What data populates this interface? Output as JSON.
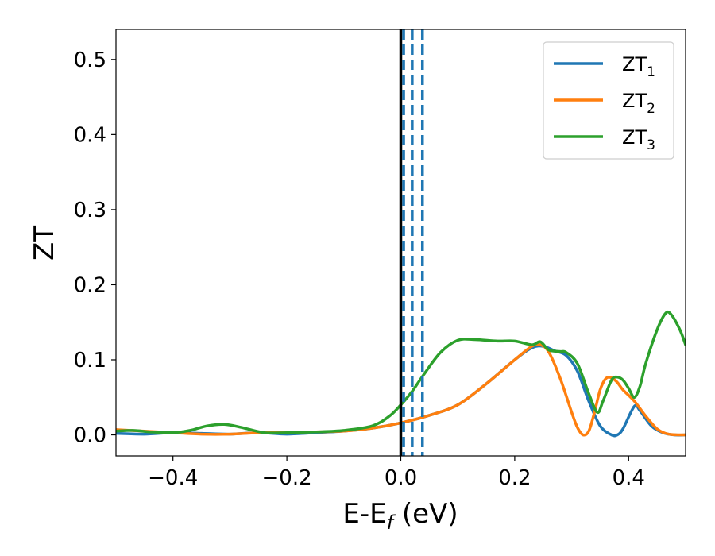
{
  "chart_data": {
    "type": "line",
    "xlabel": "E-E",
    "xlabel_sub": "f",
    "xlabel_unit": " (eV)",
    "ylabel": "ZT",
    "xlim": [
      -0.5,
      0.5
    ],
    "ylim": [
      -0.028,
      0.54
    ],
    "xticks": [
      -0.4,
      -0.2,
      0.0,
      0.2,
      0.4
    ],
    "xtick_labels": [
      "−0.4",
      "−0.2",
      "0.0",
      "0.2",
      "0.4"
    ],
    "yticks": [
      0.0,
      0.1,
      0.2,
      0.3,
      0.4,
      0.5
    ],
    "ytick_labels": [
      "0.0",
      "0.1",
      "0.2",
      "0.3",
      "0.4",
      "0.5"
    ],
    "grid": false,
    "legend_position": "top-right",
    "vertical_lines": [
      {
        "x": 0.0,
        "style": "solid",
        "color": "#000000"
      },
      {
        "x": 0.005,
        "style": "dashed",
        "color": "#1f77b4"
      },
      {
        "x": 0.02,
        "style": "dashed",
        "color": "#1f77b4"
      },
      {
        "x": 0.038,
        "style": "dashed",
        "color": "#1f77b4"
      }
    ],
    "series": [
      {
        "name": "ZT",
        "sub": "1",
        "color": "#1f77b4",
        "points": [
          [
            -0.5,
            0.002
          ],
          [
            -0.45,
            0.001
          ],
          [
            -0.4,
            0.003
          ],
          [
            -0.35,
            0.002
          ],
          [
            -0.3,
            0.001
          ],
          [
            -0.25,
            0.003
          ],
          [
            -0.2,
            0.001
          ],
          [
            -0.15,
            0.003
          ],
          [
            -0.1,
            0.005
          ],
          [
            -0.05,
            0.009
          ],
          [
            0.0,
            0.016
          ],
          [
            0.05,
            0.026
          ],
          [
            0.1,
            0.04
          ],
          [
            0.15,
            0.068
          ],
          [
            0.2,
            0.1
          ],
          [
            0.23,
            0.116
          ],
          [
            0.25,
            0.118
          ],
          [
            0.27,
            0.112
          ],
          [
            0.29,
            0.106
          ],
          [
            0.31,
            0.085
          ],
          [
            0.33,
            0.045
          ],
          [
            0.35,
            0.012
          ],
          [
            0.37,
            0.0
          ],
          [
            0.38,
            0.0
          ],
          [
            0.39,
            0.008
          ],
          [
            0.41,
            0.038
          ],
          [
            0.42,
            0.032
          ],
          [
            0.44,
            0.012
          ],
          [
            0.46,
            0.003
          ],
          [
            0.48,
            0.0
          ],
          [
            0.5,
            0.0
          ]
        ]
      },
      {
        "name": "ZT",
        "sub": "2",
        "color": "#ff7f0e",
        "points": [
          [
            -0.5,
            0.007
          ],
          [
            -0.45,
            0.005
          ],
          [
            -0.4,
            0.003
          ],
          [
            -0.35,
            0.001
          ],
          [
            -0.3,
            0.001
          ],
          [
            -0.25,
            0.003
          ],
          [
            -0.2,
            0.004
          ],
          [
            -0.15,
            0.004
          ],
          [
            -0.1,
            0.005
          ],
          [
            -0.05,
            0.009
          ],
          [
            0.0,
            0.016
          ],
          [
            0.05,
            0.026
          ],
          [
            0.1,
            0.04
          ],
          [
            0.15,
            0.068
          ],
          [
            0.2,
            0.1
          ],
          [
            0.23,
            0.118
          ],
          [
            0.245,
            0.12
          ],
          [
            0.26,
            0.11
          ],
          [
            0.28,
            0.075
          ],
          [
            0.3,
            0.03
          ],
          [
            0.31,
            0.01
          ],
          [
            0.32,
            0.0
          ],
          [
            0.33,
            0.005
          ],
          [
            0.34,
            0.03
          ],
          [
            0.35,
            0.06
          ],
          [
            0.36,
            0.075
          ],
          [
            0.37,
            0.076
          ],
          [
            0.38,
            0.07
          ],
          [
            0.39,
            0.06
          ],
          [
            0.41,
            0.045
          ],
          [
            0.43,
            0.025
          ],
          [
            0.45,
            0.008
          ],
          [
            0.47,
            0.001
          ],
          [
            0.5,
            0.0
          ]
        ]
      },
      {
        "name": "ZT",
        "sub": "3",
        "color": "#2ca02c",
        "points": [
          [
            -0.5,
            0.005
          ],
          [
            -0.47,
            0.006
          ],
          [
            -0.44,
            0.004
          ],
          [
            -0.4,
            0.003
          ],
          [
            -0.37,
            0.006
          ],
          [
            -0.34,
            0.012
          ],
          [
            -0.31,
            0.014
          ],
          [
            -0.28,
            0.01
          ],
          [
            -0.24,
            0.003
          ],
          [
            -0.2,
            0.003
          ],
          [
            -0.15,
            0.004
          ],
          [
            -0.1,
            0.006
          ],
          [
            -0.05,
            0.012
          ],
          [
            -0.02,
            0.025
          ],
          [
            0.0,
            0.04
          ],
          [
            0.02,
            0.058
          ],
          [
            0.04,
            0.08
          ],
          [
            0.07,
            0.11
          ],
          [
            0.1,
            0.126
          ],
          [
            0.13,
            0.127
          ],
          [
            0.17,
            0.125
          ],
          [
            0.2,
            0.125
          ],
          [
            0.23,
            0.12
          ],
          [
            0.245,
            0.124
          ],
          [
            0.26,
            0.113
          ],
          [
            0.28,
            0.111
          ],
          [
            0.29,
            0.11
          ],
          [
            0.31,
            0.095
          ],
          [
            0.33,
            0.055
          ],
          [
            0.345,
            0.03
          ],
          [
            0.355,
            0.045
          ],
          [
            0.37,
            0.073
          ],
          [
            0.38,
            0.077
          ],
          [
            0.39,
            0.073
          ],
          [
            0.4,
            0.062
          ],
          [
            0.41,
            0.05
          ],
          [
            0.42,
            0.065
          ],
          [
            0.43,
            0.095
          ],
          [
            0.45,
            0.14
          ],
          [
            0.465,
            0.162
          ],
          [
            0.475,
            0.16
          ],
          [
            0.49,
            0.14
          ],
          [
            0.5,
            0.12
          ]
        ]
      }
    ]
  }
}
